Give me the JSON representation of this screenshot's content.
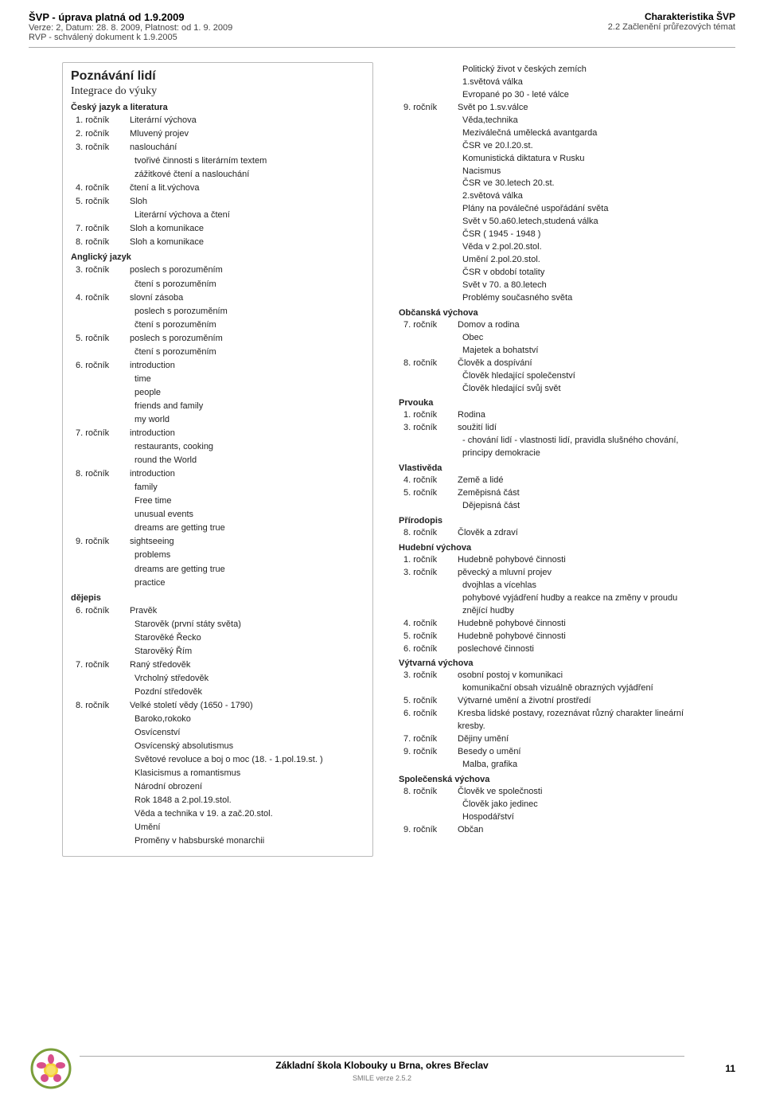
{
  "header": {
    "doc_title": "ŠVP - úprava platná od 1.9.2009",
    "version": "Verze: 2, Datum: 28. 8. 2009, Platnost: od 1. 9. 2009",
    "rvp": "RVP - schválený dokument k 1.9.2005",
    "char": "Charakteristika ŠVP",
    "section_num": "2.2 Začlenění průřezových témat"
  },
  "left": {
    "section_title": "Poznávání lidí",
    "integration": "Integrace do výuky",
    "subjects": [
      {
        "name": "Český jazyk a literatura",
        "rows": [
          {
            "rc": "1. ročník",
            "v": "Literární výchova"
          },
          {
            "rc": "2. ročník",
            "v": "Mluvený projev"
          },
          {
            "rc": "3. ročník",
            "v": "naslouchání"
          },
          {
            "rc": "",
            "v": "tvořivé činnosti s literárním textem"
          },
          {
            "rc": "",
            "v": "zážitkové čtení a naslouchání"
          },
          {
            "rc": "4. ročník",
            "v": "čtení a lit.výchova"
          },
          {
            "rc": "5. ročník",
            "v": "Sloh"
          },
          {
            "rc": "",
            "v": "Literární výchova a čtení"
          },
          {
            "rc": "7. ročník",
            "v": "Sloh a komunikace"
          },
          {
            "rc": "8. ročník",
            "v": "Sloh a komunikace"
          }
        ]
      },
      {
        "name": "Anglický jazyk",
        "rows": [
          {
            "rc": "3. ročník",
            "v": "poslech s porozuměním"
          },
          {
            "rc": "",
            "v": "čtení s porozuměním"
          },
          {
            "rc": "4. ročník",
            "v": "slovní zásoba"
          },
          {
            "rc": "",
            "v": "poslech s porozuměním"
          },
          {
            "rc": "",
            "v": "čtení s porozuměním"
          },
          {
            "rc": "5. ročník",
            "v": "poslech s porozuměním"
          },
          {
            "rc": "",
            "v": "čtení s porozuměním"
          },
          {
            "rc": "6. ročník",
            "v": "introduction"
          },
          {
            "rc": "",
            "v": "time"
          },
          {
            "rc": "",
            "v": "people"
          },
          {
            "rc": "",
            "v": "friends and family"
          },
          {
            "rc": "",
            "v": "my world"
          },
          {
            "rc": "7. ročník",
            "v": "introduction"
          },
          {
            "rc": "",
            "v": "restaurants, cooking"
          },
          {
            "rc": "",
            "v": "round the World"
          },
          {
            "rc": "8. ročník",
            "v": "introduction"
          },
          {
            "rc": "",
            "v": "family"
          },
          {
            "rc": "",
            "v": "Free time"
          },
          {
            "rc": "",
            "v": "unusual events"
          },
          {
            "rc": "",
            "v": "dreams are getting true"
          },
          {
            "rc": "9. ročník",
            "v": "sightseeing"
          },
          {
            "rc": "",
            "v": "problems"
          },
          {
            "rc": "",
            "v": "dreams are getting true"
          },
          {
            "rc": "",
            "v": "practice"
          }
        ]
      },
      {
        "name": "dějepis",
        "rows": [
          {
            "rc": "6. ročník",
            "v": "Pravěk"
          },
          {
            "rc": "",
            "v": "Starověk (první státy světa)"
          },
          {
            "rc": "",
            "v": "Starověké Řecko"
          },
          {
            "rc": "",
            "v": "Starověký Řím"
          },
          {
            "rc": "7. ročník",
            "v": "Raný středověk"
          },
          {
            "rc": "",
            "v": "Vrcholný středověk"
          },
          {
            "rc": "",
            "v": "Pozdní středověk"
          },
          {
            "rc": "8. ročník",
            "v": "Velké století vědy (1650 - 1790)"
          },
          {
            "rc": "",
            "v": "Baroko,rokoko"
          },
          {
            "rc": "",
            "v": "Osvícenství"
          },
          {
            "rc": "",
            "v": "Osvícenský absolutismus"
          },
          {
            "rc": "",
            "v": "Světové revoluce a boj o moc (18. - 1.pol.19.st. )"
          },
          {
            "rc": "",
            "v": "Klasicismus a romantismus"
          },
          {
            "rc": "",
            "v": "Národní obrození"
          },
          {
            "rc": "",
            "v": "Rok 1848 a 2.pol.19.stol."
          },
          {
            "rc": "",
            "v": "Věda a technika v 19. a zač.20.stol."
          },
          {
            "rc": "",
            "v": "Umění"
          },
          {
            "rc": "",
            "v": "Proměny v habsburské monarchii"
          }
        ]
      }
    ]
  },
  "right": {
    "top_rows": [
      {
        "rc": "",
        "v": "Politický život v českých zemích"
      },
      {
        "rc": "",
        "v": "1.světová válka"
      },
      {
        "rc": "",
        "v": "Evropané po 30 - leté válce"
      },
      {
        "rc": "9. ročník",
        "v": "Svět po 1.sv.válce"
      },
      {
        "rc": "",
        "v": "Věda,technika"
      },
      {
        "rc": "",
        "v": "Meziválečná umělecká avantgarda"
      },
      {
        "rc": "",
        "v": "ČSR ve 20.l.20.st."
      },
      {
        "rc": "",
        "v": "Komunistická diktatura v Rusku"
      },
      {
        "rc": "",
        "v": "Nacismus"
      },
      {
        "rc": "",
        "v": "ČSR ve 30.letech 20.st."
      },
      {
        "rc": "",
        "v": "2.světová válka"
      },
      {
        "rc": "",
        "v": "Plány na poválečné uspořádání světa"
      },
      {
        "rc": "",
        "v": "Svět v 50.a60.letech,studená válka"
      },
      {
        "rc": "",
        "v": "ČSR ( 1945 - 1948 )"
      },
      {
        "rc": "",
        "v": "Věda v 2.pol.20.stol."
      },
      {
        "rc": "",
        "v": "Umění 2.pol.20.stol."
      },
      {
        "rc": "",
        "v": "ČSR v období totality"
      },
      {
        "rc": "",
        "v": "Svět v 70. a 80.letech"
      },
      {
        "rc": "",
        "v": "Problémy současného světa"
      }
    ],
    "subjects": [
      {
        "name": "Občanská výchova",
        "rows": [
          {
            "rc": "7. ročník",
            "v": "Domov a rodina"
          },
          {
            "rc": "",
            "v": "Obec"
          },
          {
            "rc": "",
            "v": "Majetek a bohatství"
          },
          {
            "rc": "8. ročník",
            "v": "Člověk a dospívání"
          },
          {
            "rc": "",
            "v": "Člověk hledající společenství"
          },
          {
            "rc": "",
            "v": "Člověk hledající svůj svět"
          }
        ]
      },
      {
        "name": "Prvouka",
        "rows": [
          {
            "rc": "1. ročník",
            "v": "Rodina"
          },
          {
            "rc": "3. ročník",
            "v": "soužití lidí"
          },
          {
            "rc": "",
            "v": "- chování lidí - vlastnosti lidí, pravidla slušného chování, principy demokracie"
          }
        ]
      },
      {
        "name": "Vlastivěda",
        "rows": [
          {
            "rc": "4. ročník",
            "v": "Země a lidé"
          },
          {
            "rc": "5. ročník",
            "v": "Zeměpisná část"
          },
          {
            "rc": "",
            "v": "Dějepisná část"
          }
        ]
      },
      {
        "name": "Přírodopis",
        "rows": [
          {
            "rc": "8. ročník",
            "v": "Člověk a zdraví"
          }
        ]
      },
      {
        "name": "Hudební výchova",
        "rows": [
          {
            "rc": "1. ročník",
            "v": "Hudebně pohybové činnosti"
          },
          {
            "rc": "3. ročník",
            "v": "pěvecký a mluvní projev"
          },
          {
            "rc": "",
            "v": "dvojhlas a vícehlas"
          },
          {
            "rc": "",
            "v": "pohybové vyjádření hudby a reakce na změny v proudu znějící hudby"
          },
          {
            "rc": "4. ročník",
            "v": "Hudebně pohybové činnosti"
          },
          {
            "rc": "5. ročník",
            "v": "Hudebně pohybové činnosti"
          },
          {
            "rc": "6. ročník",
            "v": "poslechové činnosti"
          }
        ]
      },
      {
        "name": "Výtvarná výchova",
        "rows": [
          {
            "rc": "3. ročník",
            "v": "osobní postoj v komunikaci"
          },
          {
            "rc": "",
            "v": "komunikační obsah vizuálně obrazných vyjádření"
          },
          {
            "rc": "5. ročník",
            "v": "Výtvarné umění a životní prostředí"
          },
          {
            "rc": "6. ročník",
            "v": "Kresba lidské postavy, rozeznávat různý charakter lineární kresby."
          },
          {
            "rc": "7. ročník",
            "v": "Dějiny umění"
          },
          {
            "rc": "9. ročník",
            "v": "Besedy o umění"
          },
          {
            "rc": "",
            "v": "Malba, grafika"
          }
        ]
      },
      {
        "name": "Společenská výchova",
        "rows": [
          {
            "rc": "8. ročník",
            "v": "Člověk ve společnosti"
          },
          {
            "rc": "",
            "v": "Člověk jako jedinec"
          },
          {
            "rc": "",
            "v": "Hospodářství"
          },
          {
            "rc": "9. ročník",
            "v": "Občan"
          }
        ]
      }
    ]
  },
  "footer": {
    "school": "Základní škola Klobouky u Brna, okres Břeclav",
    "smile": "SMILE verze 2.5.2",
    "page": "11"
  }
}
